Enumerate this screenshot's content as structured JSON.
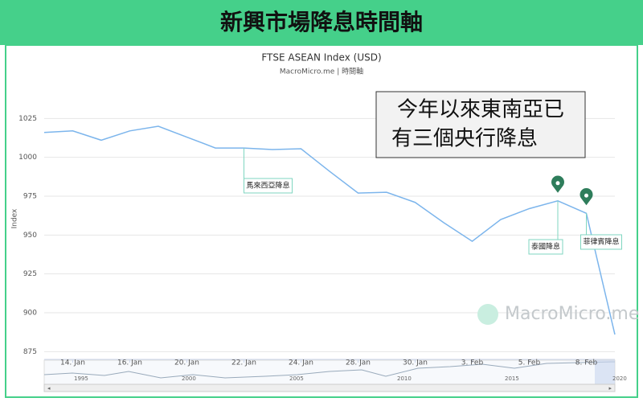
{
  "header": {
    "title": "新興市場降息時間軸"
  },
  "chart_data": {
    "type": "line",
    "title": "FTSE ASEAN Index (USD)",
    "subtitle": "MacroMicro.me | 時間軸",
    "y_label": "Index",
    "categories": [
      null,
      "14. Jan",
      null,
      "16. Jan",
      null,
      "20. Jan",
      null,
      "22. Jan",
      null,
      "24. Jan",
      null,
      "28. Jan",
      null,
      "30. Jan",
      null,
      "3. Feb",
      null,
      "5. Feb",
      null,
      "8. Feb",
      null
    ],
    "series": [
      {
        "name": "FTSE ASEAN Index (USD)",
        "color": "#7cb5ec",
        "values": [
          1016,
          1017,
          1011,
          1017,
          1020,
          1013,
          1006,
          1006,
          1005,
          1005.5,
          991,
          977,
          977.5,
          971,
          958,
          946,
          960,
          967,
          972,
          964,
          886
        ]
      }
    ],
    "ylim": [
      870,
      1050
    ],
    "yticks": [
      875,
      900,
      925,
      950,
      975,
      1000,
      1025
    ],
    "grid": true,
    "flags": [
      {
        "label": "馬來西亞降息",
        "point": 7
      },
      {
        "label": "泰國降息",
        "point": 18
      },
      {
        "label": "菲律賓降息",
        "point": 19
      }
    ],
    "annotation": [
      "今年以來東南亞已",
      "有三個央行降息"
    ],
    "watermark": "MacroMicro.me",
    "navigator_labels": [
      "1995",
      "2000",
      "2005",
      "2010",
      "2015",
      "2020"
    ]
  }
}
